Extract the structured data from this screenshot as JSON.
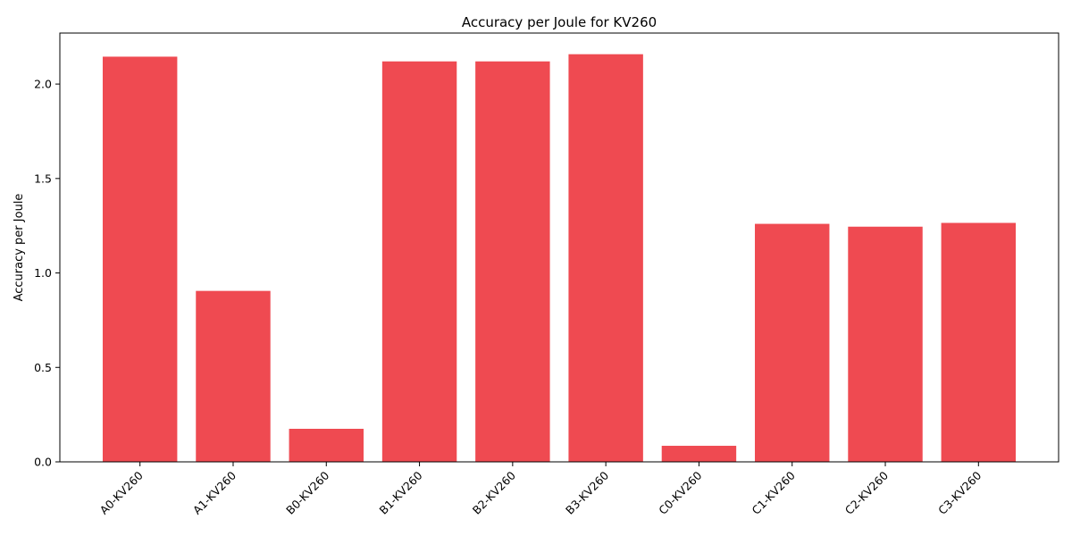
{
  "chart_data": {
    "type": "bar",
    "title": "Accuracy per Joule for KV260",
    "xlabel": "",
    "ylabel": "Accuracy per Joule",
    "categories": [
      "A0-KV260",
      "A1-KV260",
      "B0-KV260",
      "B1-KV260",
      "B2-KV260",
      "B3-KV260",
      "C0-KV260",
      "C1-KV260",
      "C2-KV260",
      "C3-KV260"
    ],
    "values": [
      2.145,
      0.905,
      0.175,
      2.12,
      2.12,
      2.158,
      0.085,
      1.26,
      1.245,
      1.265
    ],
    "ylim": [
      0,
      2.27
    ],
    "yticks": [
      "0.0",
      "0.5",
      "1.0",
      "1.5",
      "2.0"
    ],
    "bar_color": "#ef4a51",
    "grid": false,
    "legend": false
  }
}
